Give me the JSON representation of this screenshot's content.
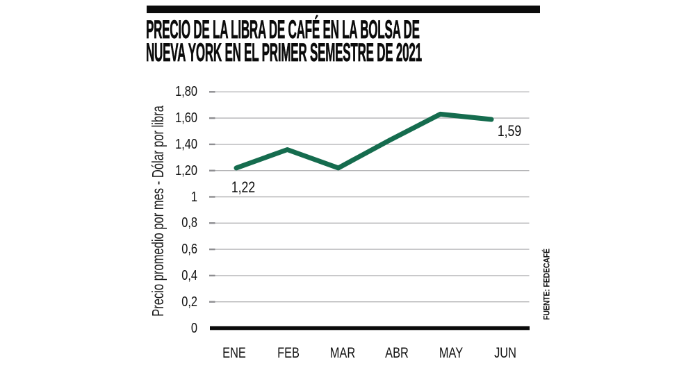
{
  "header": {
    "title_line1": "PRECIO DE LA LIBRA DE CAFÉ EN LA BOLSA DE",
    "title_line2": "NUEVA YORK EN EL PRIMER SEMESTRE DE 2021"
  },
  "source_label": "FUENTE: FEDECAFÉ",
  "colors": {
    "accent_bar": "#0b0b0b",
    "line": "#156C4E",
    "gridline": "#b4b4b6",
    "tick": "#8d8d90",
    "axis": "#0b0b0b",
    "text": "#0b0b0b"
  },
  "chart_data": {
    "type": "line",
    "title": "Precio de la libra de café en la Bolsa de Nueva York en el primer semestre de 2021",
    "categories": [
      "ENE",
      "FEB",
      "MAR",
      "ABR",
      "MAY",
      "JUN"
    ],
    "values": [
      1.22,
      1.36,
      1.22,
      1.43,
      1.63,
      1.59
    ],
    "xlabel": "",
    "ylabel": "Precio promedio por mes - Dólar por libra",
    "ylim": [
      0,
      1.8
    ],
    "yticks": [
      {
        "value": 0,
        "label": "0"
      },
      {
        "value": 0.2,
        "label": "0,2"
      },
      {
        "value": 0.4,
        "label": "0,4"
      },
      {
        "value": 0.6,
        "label": "0,6"
      },
      {
        "value": 0.8,
        "label": "0,8"
      },
      {
        "value": 1.0,
        "label": "1"
      },
      {
        "value": 1.2,
        "label": "1,20"
      },
      {
        "value": 1.4,
        "label": "1,40"
      },
      {
        "value": 1.6,
        "label": "1,60"
      },
      {
        "value": 1.8,
        "label": "1,80"
      }
    ],
    "grid": true,
    "legend": false,
    "line_color": "#156C4E",
    "annotations": [
      {
        "text": "1,22",
        "category": "ENE",
        "value": 1.22
      },
      {
        "text": "1,59",
        "category": "JUN",
        "value": 1.59
      }
    ]
  }
}
